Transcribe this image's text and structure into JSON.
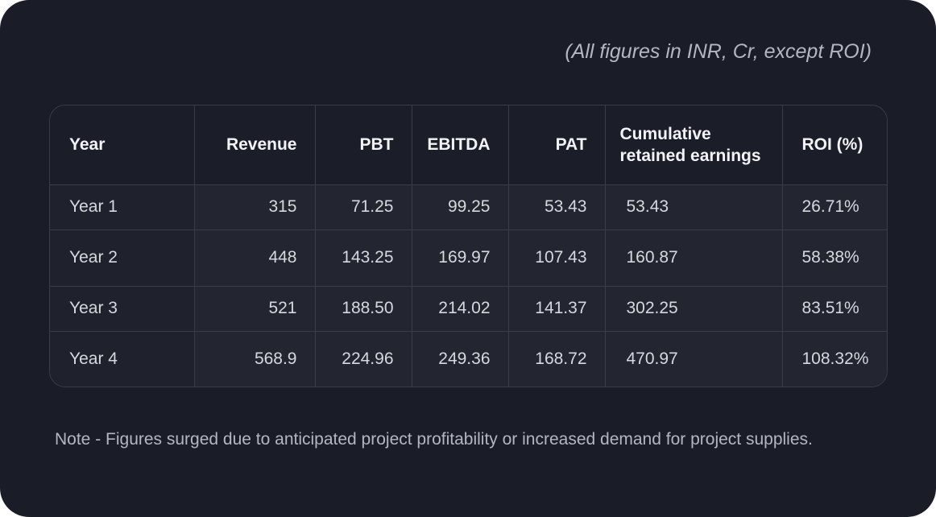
{
  "units_note": "(All figures in INR, Cr, except ROI)",
  "table": {
    "headers": {
      "year": "Year",
      "revenue": "Revenue",
      "pbt": "PBT",
      "ebitda": "EBITDA",
      "pat": "PAT",
      "cumulative_line1": "Cumulative",
      "cumulative_line2": "retained earnings",
      "roi": "ROI (%)"
    },
    "rows": [
      {
        "year": "Year 1",
        "revenue": "315",
        "pbt": "71.25",
        "ebitda": "99.25",
        "pat": "53.43",
        "cumulative": "53.43",
        "roi": "26.71%"
      },
      {
        "year": "Year 2",
        "revenue": "448",
        "pbt": "143.25",
        "ebitda": "169.97",
        "pat": "107.43",
        "cumulative": "160.87",
        "roi": "58.38%"
      },
      {
        "year": "Year 3",
        "revenue": "521",
        "pbt": "188.50",
        "ebitda": "214.02",
        "pat": "141.37",
        "cumulative": "302.25",
        "roi": "83.51%"
      },
      {
        "year": "Year 4",
        "revenue": "568.9",
        "pbt": "224.96",
        "ebitda": "249.36",
        "pat": "168.72",
        "cumulative": "470.97",
        "roi": "108.32%"
      }
    ]
  },
  "note": "Note -  Figures surged due to anticipated project profitability or increased demand for project supplies.",
  "colors": {
    "card_background": "#1a1c28",
    "border": "#3a3c48",
    "text_primary": "#f2f3f6",
    "text_muted": "#b4b6c0"
  }
}
